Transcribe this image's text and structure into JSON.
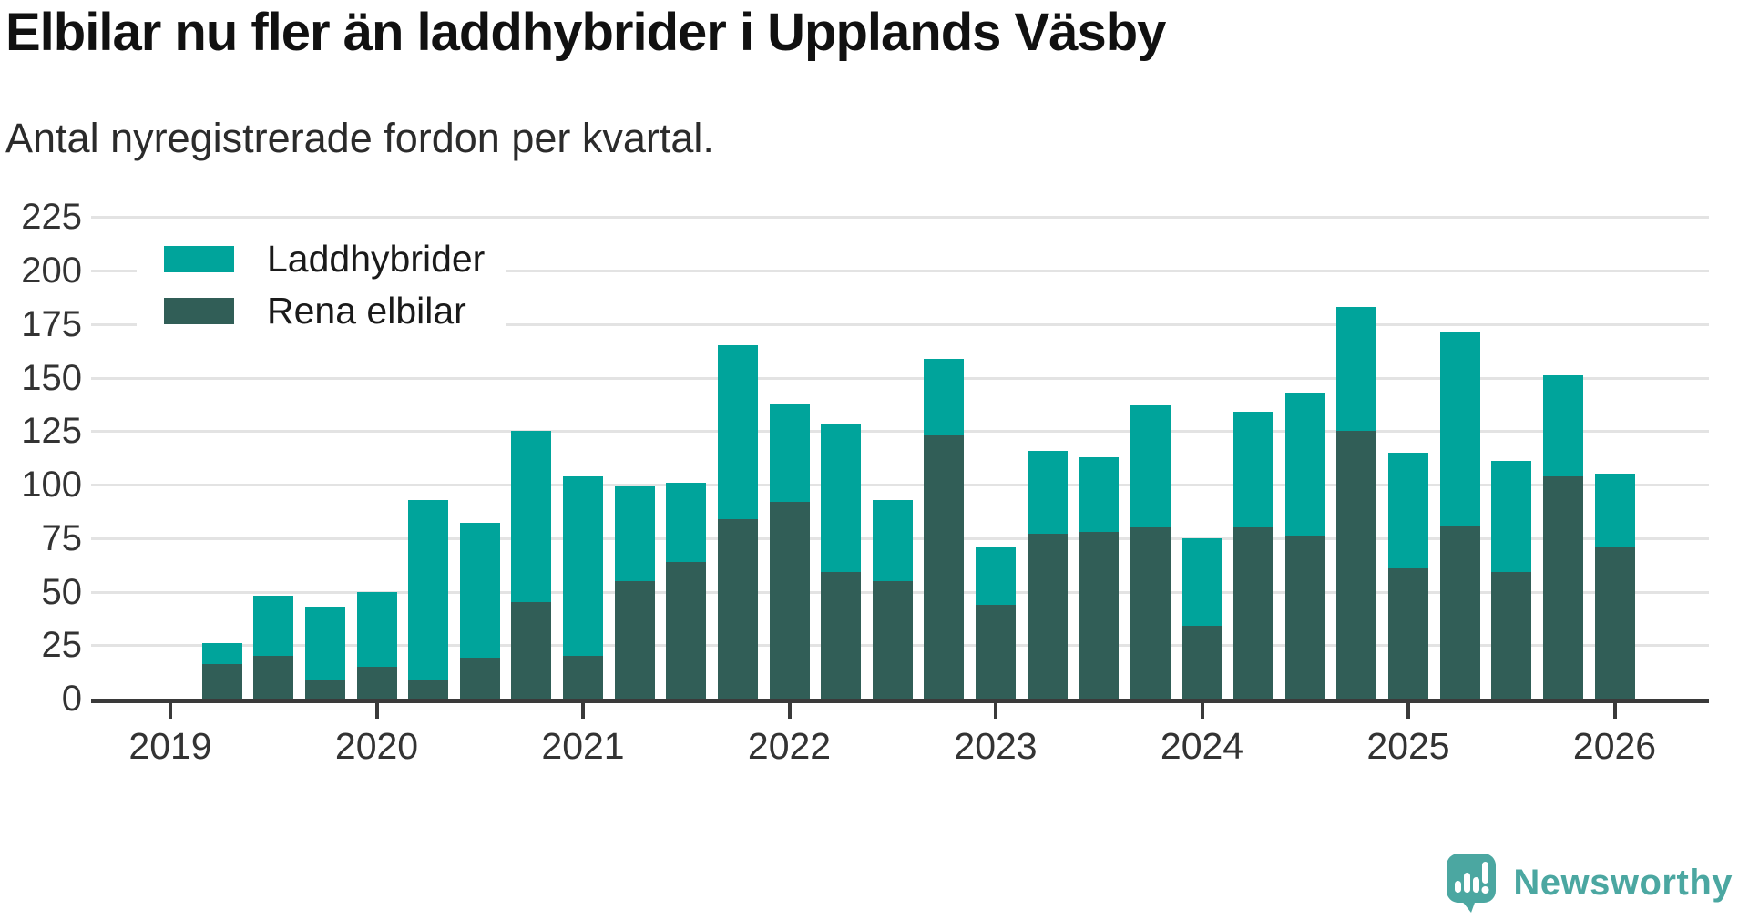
{
  "title": "Elbilar nu fler än laddhybrider i Upplands Väsby",
  "subtitle": "Antal nyregistrerade fordon per kvartal.",
  "colors": {
    "laddhybrider": "#00a49b",
    "rena_elbilar": "#315e57",
    "gridline": "#e3e3e3",
    "axis": "#3a3a3a",
    "text": "#333333",
    "logo_teal": "#4ba7a1"
  },
  "legend": {
    "items": [
      {
        "label": "Laddhybrider",
        "color_key": "laddhybrider"
      },
      {
        "label": "Rena elbilar",
        "color_key": "rena_elbilar"
      }
    ]
  },
  "logo": {
    "text": "Newsworthy"
  },
  "chart_data": {
    "type": "bar",
    "stacked": true,
    "title": "Elbilar nu fler än laddhybrider i Upplands Väsby",
    "subtitle": "Antal nyregistrerade fordon per kvartal.",
    "ylim": [
      0,
      225
    ],
    "y_ticks": [
      0,
      25,
      50,
      75,
      100,
      125,
      150,
      175,
      200,
      225
    ],
    "x_year_ticks": [
      "2019",
      "2020",
      "2021",
      "2022",
      "2023",
      "2024",
      "2025",
      "2026"
    ],
    "grid": true,
    "legend_position": "top-left",
    "categories": [
      "2019 Q2",
      "2019 Q3",
      "2019 Q4",
      "2020 Q1",
      "2020 Q2",
      "2020 Q3",
      "2020 Q4",
      "2021 Q1",
      "2021 Q2",
      "2021 Q3",
      "2021 Q4",
      "2022 Q1",
      "2022 Q2",
      "2022 Q3",
      "2022 Q4",
      "2023 Q1",
      "2023 Q2",
      "2023 Q3",
      "2023 Q4",
      "2024 Q1",
      "2024 Q2",
      "2024 Q3",
      "2024 Q4",
      "2025 Q1",
      "2025 Q2",
      "2025 Q3",
      "2025 Q4",
      "2026 Q1"
    ],
    "series": [
      {
        "name": "Rena elbilar",
        "stack_order": "bottom",
        "values": [
          16,
          20,
          9,
          15,
          9,
          19,
          45,
          20,
          55,
          64,
          84,
          92,
          59,
          55,
          123,
          44,
          77,
          78,
          80,
          34,
          80,
          76,
          125,
          61,
          81,
          59,
          104,
          71
        ]
      },
      {
        "name": "Laddhybrider",
        "stack_order": "top",
        "values": [
          10,
          28,
          34,
          35,
          84,
          63,
          80,
          84,
          44,
          37,
          81,
          46,
          69,
          38,
          36,
          27,
          39,
          35,
          57,
          41,
          54,
          67,
          58,
          54,
          90,
          52,
          47,
          34
        ]
      }
    ],
    "stacked_totals": [
      26,
      48,
      43,
      50,
      93,
      82,
      125,
      104,
      99,
      101,
      165,
      138,
      128,
      93,
      159,
      71,
      116,
      113,
      137,
      75,
      134,
      143,
      183,
      115,
      171,
      111,
      151,
      105
    ]
  }
}
